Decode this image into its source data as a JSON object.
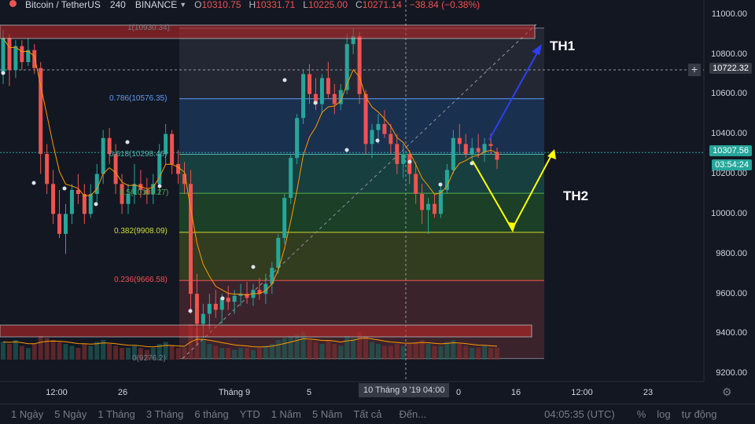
{
  "header": {
    "symbol": "Bitcoin / TetherUS",
    "interval": "240",
    "exchange": "BINANCE",
    "open_key": "O",
    "open": "10310.75",
    "high_key": "H",
    "high": "10331.71",
    "low_key": "L",
    "low": "10225.00",
    "close_key": "C",
    "close": "10271.14",
    "change": "−38.84 (−0.38%)"
  },
  "price_axis": {
    "ticks": [
      "11000.00",
      "10800.00",
      "10600.00",
      "10400.00",
      "10200.00",
      "10000.00",
      "9800.00",
      "9600.00",
      "9400.00",
      "9200.00"
    ],
    "crosshair_price": "10722.32",
    "last_price": "10307.56",
    "countdown": "03:54:24"
  },
  "time_axis": {
    "ticks": [
      "12:00",
      "26",
      "Tháng 9",
      "5",
      "0",
      "16",
      "12:00",
      "23"
    ],
    "crosshair_time": "10 Tháng 9 '19   04:00"
  },
  "fib_levels": [
    {
      "ratio": "1",
      "price": "10930.34",
      "label": "1(10930.34)",
      "color": "#787b86"
    },
    {
      "ratio": "0.786",
      "price": "10576.35",
      "label": "0.786(10576.35)",
      "color": "#5b9cf6"
    },
    {
      "ratio": "0.618",
      "price": "10298.46",
      "label": "0.618(10298.46)",
      "color": "#4db6ac"
    },
    {
      "ratio": "0.5",
      "price": "10103.27",
      "label": "0.5(10103.27)",
      "color": "#4caf50"
    },
    {
      "ratio": "0.382",
      "price": "9908.09",
      "label": "0.382(9908.09)",
      "color": "#8bc34a"
    },
    {
      "ratio": "0.236",
      "price": "9666.58",
      "label": "0.236(9666.58)",
      "color": "#ef5350"
    },
    {
      "ratio": "0",
      "price": "9276.2",
      "label": "0(9276.2)",
      "color": "#787b86"
    }
  ],
  "annotations": {
    "th1": "TH1",
    "th2": "TH2"
  },
  "bottom_bar": {
    "ranges": [
      "1 Ngày",
      "5 Ngày",
      "1 Tháng",
      "3 Tháng",
      "6 tháng",
      "YTD",
      "1 Năm",
      "5 Năm",
      "Tất cả"
    ],
    "goto": "Đến...",
    "clock": "04:05:35 (UTC)",
    "percent": "%",
    "log": "log",
    "auto": "tự động"
  },
  "colors": {
    "background": "#131722",
    "up": "#26a69a",
    "down": "#ef5350",
    "ma": "#ff9800",
    "th1_arrow": "#2d3ff0",
    "th2_arrow": "#ffff00"
  },
  "chart_data": {
    "type": "candlestick",
    "ylim": [
      9180,
      11050
    ],
    "candles": [
      [
        10700,
        10920,
        10650,
        10880
      ],
      [
        10880,
        10900,
        10640,
        10720
      ],
      [
        10720,
        10870,
        10680,
        10840
      ],
      [
        10840,
        10870,
        10720,
        10760
      ],
      [
        10760,
        10880,
        10740,
        10820
      ],
      [
        10820,
        10850,
        10700,
        10730
      ],
      [
        10730,
        10760,
        10200,
        10300
      ],
      [
        10300,
        10350,
        10100,
        10150
      ],
      [
        10150,
        10220,
        9950,
        10000
      ],
      [
        10000,
        10120,
        9880,
        9900
      ],
      [
        9900,
        10050,
        9800,
        10000
      ],
      [
        10000,
        10150,
        9950,
        10120
      ],
      [
        10120,
        10200,
        10050,
        10100
      ],
      [
        10100,
        10150,
        9950,
        10000
      ],
      [
        10000,
        10150,
        9980,
        10100
      ],
      [
        10100,
        10250,
        10050,
        10200
      ],
      [
        10200,
        10420,
        10150,
        10380
      ],
      [
        10380,
        10430,
        10250,
        10300
      ],
      [
        10300,
        10350,
        10100,
        10150
      ],
      [
        10150,
        10200,
        10000,
        10050
      ],
      [
        10050,
        10150,
        10000,
        10100
      ],
      [
        10100,
        10250,
        10050,
        10150
      ],
      [
        10150,
        10220,
        10080,
        10120
      ],
      [
        10120,
        10180,
        10050,
        10100
      ],
      [
        10100,
        10200,
        10050,
        10150
      ],
      [
        10150,
        10350,
        10100,
        10300
      ],
      [
        10300,
        10450,
        10250,
        10400
      ],
      [
        10400,
        10420,
        10200,
        10250
      ],
      [
        10250,
        10320,
        10150,
        10200
      ],
      [
        10200,
        10260,
        10100,
        10150
      ],
      [
        10150,
        10220,
        9500,
        9600
      ],
      [
        9600,
        9700,
        9350,
        9450
      ],
      [
        9450,
        9550,
        9380,
        9500
      ],
      [
        9500,
        9600,
        9420,
        9550
      ],
      [
        9550,
        9620,
        9480,
        9520
      ],
      [
        9520,
        9600,
        9450,
        9580
      ],
      [
        9580,
        9640,
        9520,
        9560
      ],
      [
        9560,
        9620,
        9500,
        9590
      ],
      [
        9590,
        9650,
        9540,
        9600
      ],
      [
        9600,
        9660,
        9550,
        9580
      ],
      [
        9580,
        9650,
        9540,
        9620
      ],
      [
        9620,
        9680,
        9570,
        9600
      ],
      [
        9600,
        9700,
        9550,
        9650
      ],
      [
        9650,
        9760,
        9600,
        9730
      ],
      [
        9730,
        9900,
        9700,
        9880
      ],
      [
        9880,
        10100,
        9850,
        10080
      ],
      [
        10080,
        10300,
        10050,
        10280
      ],
      [
        10280,
        10500,
        10250,
        10480
      ],
      [
        10480,
        10720,
        10450,
        10700
      ],
      [
        10700,
        10750,
        10550,
        10600
      ],
      [
        10600,
        10680,
        10520,
        10550
      ],
      [
        10550,
        10700,
        10500,
        10680
      ],
      [
        10680,
        10760,
        10580,
        10600
      ],
      [
        10600,
        10650,
        10500,
        10550
      ],
      [
        10550,
        10650,
        10520,
        10620
      ],
      [
        10620,
        10900,
        10600,
        10850
      ],
      [
        10850,
        10930,
        10800,
        10890
      ],
      [
        10890,
        10910,
        10550,
        10600
      ],
      [
        10600,
        10620,
        10300,
        10350
      ],
      [
        10350,
        10450,
        10280,
        10420
      ],
      [
        10420,
        10500,
        10350,
        10450
      ],
      [
        10450,
        10520,
        10380,
        10400
      ],
      [
        10400,
        10450,
        10300,
        10350
      ],
      [
        10350,
        10400,
        10200,
        10250
      ],
      [
        10250,
        10350,
        10180,
        10300
      ],
      [
        10300,
        10320,
        10150,
        10200
      ],
      [
        10200,
        10260,
        10050,
        10100
      ],
      [
        10100,
        10150,
        9950,
        10020
      ],
      [
        10020,
        10080,
        9900,
        10050
      ],
      [
        10050,
        10100,
        9980,
        10000
      ],
      [
        10000,
        10150,
        9980,
        10120
      ],
      [
        10120,
        10250,
        10100,
        10220
      ],
      [
        10220,
        10420,
        10200,
        10380
      ],
      [
        10380,
        10450,
        10300,
        10350
      ],
      [
        10350,
        10400,
        10280,
        10300
      ],
      [
        10300,
        10380,
        10250,
        10330
      ],
      [
        10330,
        10400,
        10280,
        10310
      ],
      [
        10310,
        10380,
        10260,
        10350
      ],
      [
        10350,
        10400,
        10300,
        10340
      ],
      [
        10310,
        10332,
        10225,
        10271
      ]
    ],
    "volume": [
      0.45,
      0.4,
      0.5,
      0.35,
      0.3,
      0.4,
      0.6,
      0.55,
      0.5,
      0.45,
      0.4,
      0.35,
      0.3,
      0.4,
      0.35,
      0.45,
      0.5,
      0.4,
      0.35,
      0.3,
      0.3,
      0.35,
      0.3,
      0.25,
      0.3,
      0.4,
      0.45,
      0.35,
      0.3,
      0.3,
      0.9,
      0.8,
      0.5,
      0.4,
      0.35,
      0.3,
      0.3,
      0.25,
      0.3,
      0.3,
      0.25,
      0.3,
      0.35,
      0.4,
      0.5,
      0.55,
      0.6,
      0.65,
      0.7,
      0.5,
      0.45,
      0.4,
      0.5,
      0.4,
      0.35,
      0.6,
      0.55,
      0.7,
      0.6,
      0.45,
      0.4,
      0.35,
      0.35,
      0.4,
      0.35,
      0.4,
      0.45,
      0.5,
      0.4,
      0.35,
      0.35,
      0.45,
      0.5,
      0.4,
      0.35,
      0.3,
      0.3,
      0.35,
      0.3,
      0.3
    ],
    "fib_range": [
      9276.2,
      10930.34
    ],
    "horizontal_zones": [
      [
        10930,
        10980
      ],
      [
        9380,
        9440
      ]
    ]
  }
}
